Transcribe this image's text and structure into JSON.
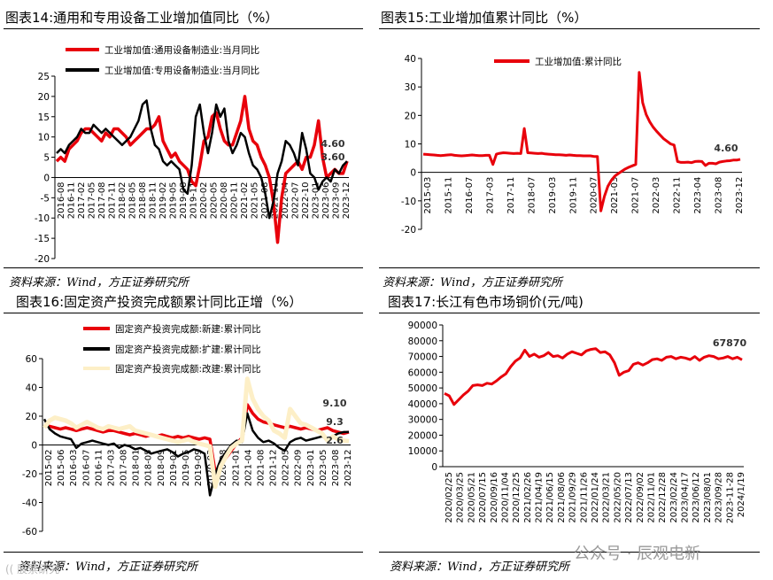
{
  "panels": {
    "p14": {
      "title": "图表14:通用和专用设备工业增加值同比（%）",
      "source": "资料来源：Wind，方正证券研究所"
    },
    "p15": {
      "title": "图表15:工业增加值累计同比（%）",
      "source": "资料来源：Wind，方正证券研究所"
    },
    "p16": {
      "title": "图表16:固定资产投资完成额累计同比正增（%）",
      "source": "资料来源：Wind，方正证券研究所"
    },
    "p17": {
      "title": "图表17:长江有色市场铜价(元/吨)",
      "source": "资料来源：Wind，方正证券研究所"
    }
  },
  "watermark": {
    "text": "公众号 · 辰观电新",
    "corner": "(( 股票研究"
  },
  "chart_data": [
    {
      "id": "c14",
      "type": "line",
      "ylim": [
        -20,
        25
      ],
      "yticks": [
        -20,
        -15,
        -10,
        -5,
        0,
        5,
        10,
        15,
        20,
        25
      ],
      "x_ticks": [
        "2016-08",
        "2016-11",
        "2017-02",
        "2017-05",
        "2017-08",
        "2017-11",
        "2018-02",
        "2018-05",
        "2018-08",
        "2018-11",
        "2019-02",
        "2019-05",
        "2019-08",
        "2019-11",
        "2020-02",
        "2020-05",
        "2020-08",
        "2020-11",
        "2021-02",
        "2021-05",
        "2021-08",
        "2021-11",
        "2022-04",
        "2022-07",
        "2022-10",
        "2023-01",
        "2023-06",
        "2023-09",
        "2023-12"
      ],
      "annotations": [
        "4.60",
        "3.60"
      ],
      "series": [
        {
          "name": "工业增加值:通用设备制造业:当月同比",
          "color": "#e8000b",
          "width": 3.5,
          "values": [
            4,
            5,
            4,
            7,
            8,
            9,
            11,
            12,
            12,
            11,
            10,
            9,
            11,
            10,
            12,
            12,
            11,
            10,
            8,
            9,
            10,
            11,
            12,
            12,
            13,
            15,
            9,
            7,
            5,
            6,
            4,
            3,
            2,
            -1,
            -2,
            3,
            9,
            10,
            15,
            16,
            12,
            9,
            8,
            8,
            11,
            14,
            20,
            12,
            9,
            8,
            5,
            3,
            0,
            -6,
            -16,
            -5,
            1,
            2,
            3,
            4,
            2,
            5,
            5,
            8,
            14,
            5,
            0,
            1,
            2,
            1,
            1,
            4
          ]
        },
        {
          "name": "工业增加值:专用设备制造业:当月同比",
          "color": "#000000",
          "width": 2.5,
          "values": [
            6,
            7,
            6,
            8,
            9,
            10,
            12,
            11,
            11,
            13,
            12,
            11,
            12,
            11,
            10,
            9,
            8,
            9,
            10,
            12,
            14,
            18,
            19,
            12,
            8,
            7,
            4,
            3,
            4,
            3,
            2,
            -3,
            -4,
            3,
            15,
            18,
            11,
            6,
            11,
            18,
            15,
            17,
            9,
            6,
            8,
            11,
            10,
            6,
            3,
            2,
            0,
            -4,
            -10,
            -6,
            1,
            4,
            9,
            8,
            6,
            3,
            11,
            7,
            1,
            0,
            -3,
            -1,
            0,
            -1,
            2,
            1,
            3,
            4
          ]
        }
      ]
    },
    {
      "id": "c15",
      "type": "line",
      "ylim": [
        -20,
        40
      ],
      "yticks": [
        -20,
        -10,
        0,
        10,
        20,
        30,
        40
      ],
      "x_ticks": [
        "2015-03",
        "2015-11",
        "2016-07",
        "2017-03",
        "2017-11",
        "2018-07",
        "2019-03",
        "2019-11",
        "2020-07",
        "2021-03",
        "2021-07",
        "2022-03",
        "2022-11",
        "2023-04",
        "2023-08",
        "2023-12"
      ],
      "annotations": [
        "4.60"
      ],
      "series": [
        {
          "name": "工业增加值:累计同比",
          "color": "#e8000b",
          "width": 3,
          "values": [
            6.4,
            6.3,
            6.2,
            6.1,
            6,
            5.9,
            6,
            6.1,
            6.2,
            6,
            5.9,
            5.8,
            5.9,
            6,
            6.1,
            6,
            5.9,
            5.9,
            6,
            6,
            2.8,
            6.4,
            6.7,
            6.9,
            6.8,
            6.7,
            6.6,
            6.7,
            6.6,
            15.4,
            6.9,
            6.8,
            6.7,
            6.6,
            6.7,
            6.5,
            6.4,
            6.3,
            6.2,
            6.2,
            6.1,
            6,
            6.1,
            6,
            5.9,
            5.9,
            5.8,
            5.8,
            5.8,
            5.6,
            5.6,
            -13.5,
            -8.4,
            -4.9,
            -2.8,
            -1.3,
            -0.4,
            0.4,
            1.2,
            1.8,
            2.3,
            2.8,
            35.1,
            24.5,
            20.3,
            17.8,
            15.9,
            14.4,
            13.1,
            11.8,
            10.9,
            10,
            9.6,
            3.8,
            3.5,
            3.5,
            3.6,
            3.4,
            3.8,
            3.9,
            3.8,
            2.4,
            3.2,
            3.2,
            3,
            3.6,
            3.8,
            4,
            4.1,
            4.3,
            4.3,
            4.6
          ]
        }
      ]
    },
    {
      "id": "c16",
      "type": "line",
      "ylim": [
        -60,
        60
      ],
      "yticks": [
        -60,
        -40,
        -20,
        0,
        20,
        40,
        60
      ],
      "x_ticks": [
        "2015-02",
        "2015-06",
        "2016-03",
        "2016-07",
        "2016-11",
        "2017-03",
        "2017-08",
        "2018-01",
        "2018-05",
        "2018-09",
        "2019-01",
        "2019-05",
        "2019-09",
        "2020-03",
        "2020-08",
        "2021-01",
        "2021-04",
        "2021-08",
        "2021-12",
        "2022-05",
        "2022-09",
        "2023-01",
        "2023-05",
        "2023-08",
        "2023-12"
      ],
      "annotations": [
        "9.10",
        "9.3",
        "2.6"
      ],
      "series": [
        {
          "name": "固定资产投资完成额:新建:累计同比",
          "color": "#e8000b",
          "width": 3.5,
          "values": [
            14,
            13,
            12,
            11,
            12,
            11,
            10,
            11,
            12,
            11,
            10,
            9,
            10,
            10,
            9,
            8,
            7,
            8,
            7,
            6,
            7,
            6,
            7,
            6,
            5,
            6,
            5,
            6,
            5,
            4,
            5,
            4,
            -19,
            -14,
            -9,
            -4,
            1,
            5,
            28,
            22,
            18,
            16,
            15,
            14,
            13,
            12,
            13,
            12,
            11,
            12,
            11,
            10,
            11,
            12,
            10,
            9,
            8,
            9
          ]
        },
        {
          "name": "固定资产投资完成额:扩建:累计同比",
          "color": "#000000",
          "width": 2.5,
          "values": [
            18,
            11,
            8,
            6,
            5,
            4,
            -2,
            1,
            2,
            3,
            2,
            1,
            0,
            1,
            -2,
            0,
            -1,
            -3,
            -2,
            -4,
            -6,
            -5,
            -4,
            -3,
            -5,
            -8,
            -6,
            -5,
            -3,
            -4,
            -6,
            -35,
            -20,
            -10,
            -5,
            0,
            3,
            2,
            22,
            10,
            5,
            2,
            3,
            1,
            -2,
            -4,
            2,
            4,
            5,
            3,
            4,
            5,
            6,
            4,
            6,
            8,
            9,
            9
          ]
        },
        {
          "name": "固定资产投资完成额:改建:累计同比",
          "color": "#fdefc7",
          "width": 5,
          "values": [
            12,
            17,
            19,
            18,
            17,
            15,
            12,
            14,
            16,
            14,
            12,
            11,
            13,
            12,
            11,
            12,
            13,
            10,
            9,
            8,
            7,
            6,
            5,
            4,
            3,
            2,
            3,
            4,
            2,
            1,
            0,
            -1,
            -29,
            -15,
            -8,
            -2,
            1,
            3,
            46,
            32,
            25,
            20,
            17,
            10,
            8,
            5,
            25,
            20,
            15,
            14,
            12,
            10,
            8,
            3,
            6,
            4,
            3,
            2.6
          ]
        }
      ]
    },
    {
      "id": "c17",
      "type": "line",
      "ylim": [
        0,
        90000
      ],
      "yticks": [
        0,
        10000,
        20000,
        30000,
        40000,
        50000,
        60000,
        70000,
        80000,
        90000
      ],
      "x_ticks": [
        "2020/02/25",
        "2020/03/25",
        "2020/05/21",
        "2020/07/15",
        "2020/09/16",
        "2020/11/04",
        "2020/12/25",
        "2021/02/26",
        "2021/04/19",
        "2021/06/15",
        "2021/08/06",
        "2021/09/29",
        "2021/11/26",
        "2022/01/24",
        "2022/03/21",
        "2022/05/20",
        "2022/07/13",
        "2022/09/02",
        "2022/11/01",
        "2022/12/28",
        "2023/02/24",
        "2023/04/17",
        "2023/06/12",
        "2023/08/01",
        "2023/09/28",
        "2023-11-28",
        "2024/1/19"
      ],
      "annotations": [
        "67870"
      ],
      "series": [
        {
          "name": "铜价",
          "color": "#e8000b",
          "width": 3,
          "values": [
            46500,
            45000,
            39500,
            42500,
            45500,
            48000,
            51500,
            52000,
            51500,
            53000,
            52500,
            54500,
            57000,
            59000,
            63500,
            67000,
            69000,
            74000,
            70000,
            71500,
            69500,
            70500,
            72500,
            70000,
            70500,
            69000,
            71500,
            73000,
            72000,
            71000,
            73500,
            74500,
            75000,
            72500,
            73000,
            71000,
            66000,
            58000,
            60000,
            61000,
            65000,
            66000,
            64500,
            66000,
            68000,
            68500,
            67500,
            69500,
            70000,
            68500,
            69500,
            69000,
            68000,
            70000,
            67500,
            69500,
            70500,
            70000,
            68500,
            69000,
            70000,
            68500,
            69500,
            67870
          ]
        }
      ]
    }
  ]
}
